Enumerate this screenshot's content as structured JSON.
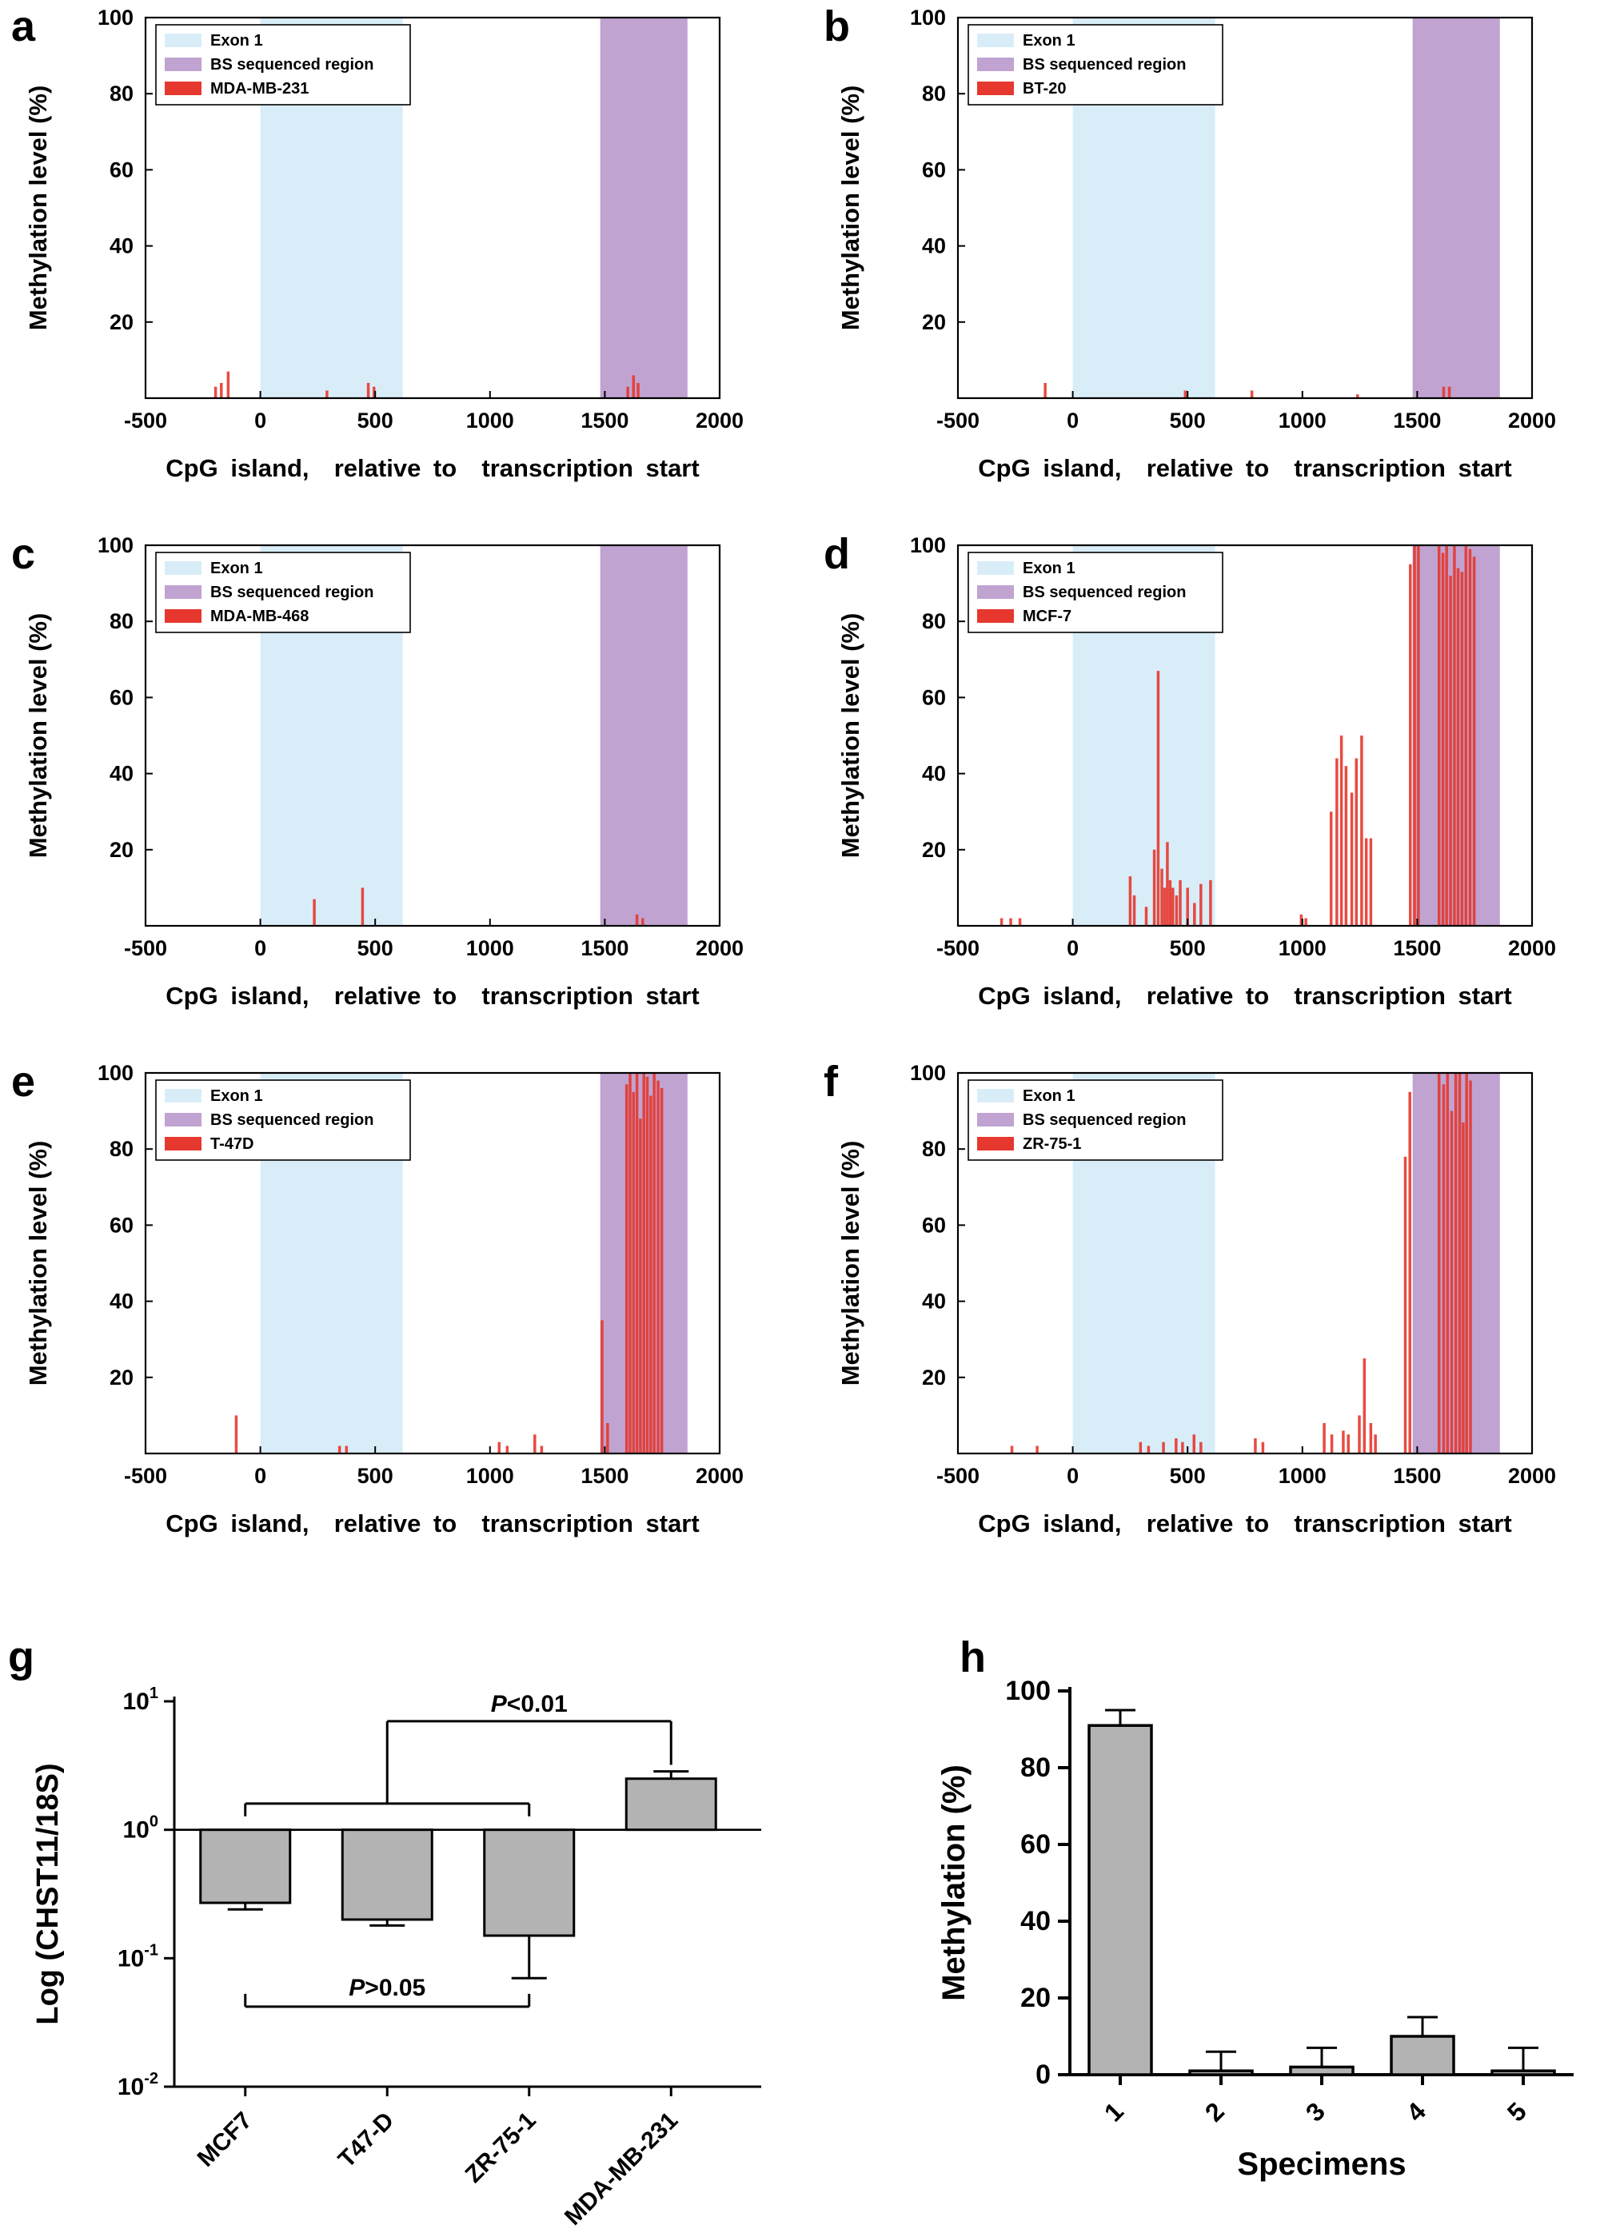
{
  "page": {
    "background": "#ffffff"
  },
  "colors": {
    "exon1_fill": "#d9edf8",
    "bs_fill": "#c0a3d1",
    "meth_bar": "#e6382e",
    "grey_bar": "#b3b3b3",
    "axis": "#000000"
  },
  "chart_data": [
    {
      "id": "a",
      "panel_label": "a",
      "type": "bar",
      "variant": "methylation-profile",
      "series_name": "MDA-MB-231",
      "xlabel": "CpG island,  relative to  transcription start",
      "ylabel": "Methylation level (%)",
      "xlim": [
        -500,
        2000
      ],
      "ylim": [
        0,
        100
      ],
      "xticks": [
        -500,
        0,
        500,
        1000,
        1500,
        2000
      ],
      "xtick_labels": [
        "-500",
        "0",
        "500",
        "1000",
        "1500",
        "2000"
      ],
      "yticks": [
        20,
        40,
        60,
        80,
        100
      ],
      "regions": [
        {
          "label": "Exon 1",
          "from": 0,
          "to": 620,
          "color_key": "exon1_fill"
        },
        {
          "label": "BS sequenced region",
          "from": 1480,
          "to": 1860,
          "color_key": "bs_fill"
        }
      ],
      "legend": [
        {
          "label": "Exon 1",
          "color_key": "exon1_fill"
        },
        {
          "label": "BS sequenced region",
          "color_key": "bs_fill"
        },
        {
          "label": "MDA-MB-231",
          "color_key": "meth_bar"
        }
      ],
      "bars": [
        [
          -195,
          3
        ],
        [
          -170,
          4
        ],
        [
          -140,
          7
        ],
        [
          290,
          2
        ],
        [
          470,
          4
        ],
        [
          495,
          3
        ],
        [
          1600,
          3
        ],
        [
          1625,
          6
        ],
        [
          1645,
          4
        ]
      ]
    },
    {
      "id": "b",
      "panel_label": "b",
      "type": "bar",
      "variant": "methylation-profile",
      "series_name": "BT-20",
      "xlabel": "CpG island,  relative to  transcription start",
      "ylabel": "Methylation level (%)",
      "xlim": [
        -500,
        2000
      ],
      "ylim": [
        0,
        100
      ],
      "xticks": [
        -500,
        0,
        500,
        1000,
        1500,
        2000
      ],
      "xtick_labels": [
        "-500",
        "0",
        "500",
        "1000",
        "1500",
        "2000"
      ],
      "yticks": [
        20,
        40,
        60,
        80,
        100
      ],
      "regions": [
        {
          "label": "Exon 1",
          "from": 0,
          "to": 620,
          "color_key": "exon1_fill"
        },
        {
          "label": "BS sequenced region",
          "from": 1480,
          "to": 1860,
          "color_key": "bs_fill"
        }
      ],
      "legend": [
        {
          "label": "Exon 1",
          "color_key": "exon1_fill"
        },
        {
          "label": "BS sequenced region",
          "color_key": "bs_fill"
        },
        {
          "label": "BT-20",
          "color_key": "meth_bar"
        }
      ],
      "bars": [
        [
          -120,
          4
        ],
        [
          490,
          2
        ],
        [
          780,
          2
        ],
        [
          1240,
          1
        ],
        [
          1615,
          3
        ],
        [
          1640,
          3
        ]
      ]
    },
    {
      "id": "c",
      "panel_label": "c",
      "type": "bar",
      "variant": "methylation-profile",
      "series_name": "MDA-MB-468",
      "xlabel": "CpG island,  relative to  transcription start",
      "ylabel": "Methylation level (%)",
      "xlim": [
        -500,
        2000
      ],
      "ylim": [
        0,
        100
      ],
      "xticks": [
        -500,
        0,
        500,
        1000,
        1500,
        2000
      ],
      "xtick_labels": [
        "-500",
        "0",
        "500",
        "1000",
        "1500",
        "2000"
      ],
      "yticks": [
        20,
        40,
        60,
        80,
        100
      ],
      "regions": [
        {
          "label": "Exon 1",
          "from": 0,
          "to": 620,
          "color_key": "exon1_fill"
        },
        {
          "label": "BS sequenced region",
          "from": 1480,
          "to": 1860,
          "color_key": "bs_fill"
        }
      ],
      "legend": [
        {
          "label": "Exon 1",
          "color_key": "exon1_fill"
        },
        {
          "label": "BS sequenced region",
          "color_key": "bs_fill"
        },
        {
          "label": "MDA-MB-468",
          "color_key": "meth_bar"
        }
      ],
      "bars": [
        [
          235,
          7
        ],
        [
          445,
          10
        ],
        [
          1640,
          3
        ],
        [
          1665,
          2
        ]
      ]
    },
    {
      "id": "d",
      "panel_label": "d",
      "type": "bar",
      "variant": "methylation-profile",
      "series_name": "MCF-7",
      "xlabel": "CpG island,  relative to  transcription start",
      "ylabel": "Methylation level (%)",
      "xlim": [
        -500,
        2000
      ],
      "ylim": [
        0,
        100
      ],
      "xticks": [
        -500,
        0,
        500,
        1000,
        1500,
        2000
      ],
      "xtick_labels": [
        "-500",
        "0",
        "500",
        "1000",
        "1500",
        "2000"
      ],
      "yticks": [
        20,
        40,
        60,
        80,
        100
      ],
      "regions": [
        {
          "label": "Exon 1",
          "from": 0,
          "to": 620,
          "color_key": "exon1_fill"
        },
        {
          "label": "BS sequenced region",
          "from": 1480,
          "to": 1860,
          "color_key": "bs_fill"
        }
      ],
      "legend": [
        {
          "label": "Exon 1",
          "color_key": "exon1_fill"
        },
        {
          "label": "BS sequenced region",
          "color_key": "bs_fill"
        },
        {
          "label": "MCF-7",
          "color_key": "meth_bar"
        }
      ],
      "bars": [
        [
          -310,
          2
        ],
        [
          -270,
          2
        ],
        [
          -230,
          2
        ],
        [
          250,
          13
        ],
        [
          268,
          8
        ],
        [
          320,
          5
        ],
        [
          355,
          20
        ],
        [
          372,
          67
        ],
        [
          388,
          15
        ],
        [
          400,
          10
        ],
        [
          412,
          22
        ],
        [
          424,
          12
        ],
        [
          436,
          10
        ],
        [
          452,
          8
        ],
        [
          468,
          12
        ],
        [
          500,
          10
        ],
        [
          530,
          6
        ],
        [
          558,
          11
        ],
        [
          600,
          12
        ],
        [
          995,
          3
        ],
        [
          1015,
          2
        ],
        [
          1125,
          30
        ],
        [
          1150,
          44
        ],
        [
          1170,
          50
        ],
        [
          1190,
          42
        ],
        [
          1215,
          35
        ],
        [
          1235,
          44
        ],
        [
          1258,
          50
        ],
        [
          1278,
          23
        ],
        [
          1298,
          23
        ],
        [
          1470,
          95
        ],
        [
          1488,
          100
        ],
        [
          1505,
          100
        ],
        [
          1595,
          100
        ],
        [
          1612,
          98
        ],
        [
          1628,
          100
        ],
        [
          1645,
          92
        ],
        [
          1662,
          100
        ],
        [
          1678,
          94
        ],
        [
          1695,
          93
        ],
        [
          1712,
          100
        ],
        [
          1730,
          99
        ],
        [
          1748,
          97
        ]
      ]
    },
    {
      "id": "e",
      "panel_label": "e",
      "type": "bar",
      "variant": "methylation-profile",
      "series_name": "T-47D",
      "xlabel": "CpG island,  relative to  transcription start",
      "ylabel": "Methylation level (%)",
      "xlim": [
        -500,
        2000
      ],
      "ylim": [
        0,
        100
      ],
      "xticks": [
        -500,
        0,
        500,
        1000,
        1500,
        2000
      ],
      "xtick_labels": [
        "-500",
        "0",
        "500",
        "1000",
        "1500",
        "2000"
      ],
      "yticks": [
        20,
        40,
        60,
        80,
        100
      ],
      "regions": [
        {
          "label": "Exon 1",
          "from": 0,
          "to": 620,
          "color_key": "exon1_fill"
        },
        {
          "label": "BS sequenced region",
          "from": 1480,
          "to": 1860,
          "color_key": "bs_fill"
        }
      ],
      "legend": [
        {
          "label": "Exon 1",
          "color_key": "exon1_fill"
        },
        {
          "label": "BS sequenced region",
          "color_key": "bs_fill"
        },
        {
          "label": "T-47D",
          "color_key": "meth_bar"
        }
      ],
      "bars": [
        [
          -105,
          10
        ],
        [
          345,
          2
        ],
        [
          375,
          2
        ],
        [
          1040,
          3
        ],
        [
          1075,
          2
        ],
        [
          1195,
          5
        ],
        [
          1225,
          2
        ],
        [
          1488,
          35
        ],
        [
          1512,
          8
        ],
        [
          1595,
          97
        ],
        [
          1610,
          100
        ],
        [
          1625,
          95
        ],
        [
          1640,
          100
        ],
        [
          1655,
          88
        ],
        [
          1670,
          100
        ],
        [
          1685,
          99
        ],
        [
          1700,
          94
        ],
        [
          1715,
          100
        ],
        [
          1732,
          98
        ],
        [
          1748,
          96
        ]
      ]
    },
    {
      "id": "f",
      "panel_label": "f",
      "type": "bar",
      "variant": "methylation-profile",
      "series_name": "ZR-75-1",
      "xlabel": "CpG island,  relative to  transcription start",
      "ylabel": "Methylation level (%)",
      "xlim": [
        -500,
        2000
      ],
      "ylim": [
        0,
        100
      ],
      "xticks": [
        -500,
        0,
        500,
        1000,
        1500,
        2000
      ],
      "xtick_labels": [
        "-500",
        "0",
        "500",
        "1000",
        "1500",
        "2000"
      ],
      "yticks": [
        20,
        40,
        60,
        80,
        100
      ],
      "regions": [
        {
          "label": "Exon 1",
          "from": 0,
          "to": 620,
          "color_key": "exon1_fill"
        },
        {
          "label": "BS sequenced region",
          "from": 1480,
          "to": 1860,
          "color_key": "bs_fill"
        }
      ],
      "legend": [
        {
          "label": "Exon 1",
          "color_key": "exon1_fill"
        },
        {
          "label": "BS sequenced region",
          "color_key": "bs_fill"
        },
        {
          "label": "ZR-75-1",
          "color_key": "meth_bar"
        }
      ],
      "bars": [
        [
          -265,
          2
        ],
        [
          -155,
          2
        ],
        [
          295,
          3
        ],
        [
          330,
          2
        ],
        [
          395,
          3
        ],
        [
          450,
          4
        ],
        [
          478,
          3
        ],
        [
          528,
          5
        ],
        [
          558,
          3
        ],
        [
          795,
          4
        ],
        [
          828,
          3
        ],
        [
          1095,
          8
        ],
        [
          1128,
          5
        ],
        [
          1178,
          6
        ],
        [
          1200,
          5
        ],
        [
          1248,
          10
        ],
        [
          1270,
          25
        ],
        [
          1298,
          8
        ],
        [
          1318,
          5
        ],
        [
          1448,
          78
        ],
        [
          1468,
          95
        ],
        [
          1595,
          100
        ],
        [
          1615,
          97
        ],
        [
          1632,
          100
        ],
        [
          1650,
          90
        ],
        [
          1668,
          100
        ],
        [
          1685,
          100
        ],
        [
          1700,
          87
        ],
        [
          1715,
          100
        ],
        [
          1732,
          98
        ]
      ]
    },
    {
      "id": "g",
      "panel_label": "g",
      "type": "bar",
      "variant": "log-bar",
      "ylabel": "Log (CHST11/18S)",
      "yscale": "log",
      "ylim": [
        0.01,
        10
      ],
      "ytick_base": "10",
      "ytick_exponents": [
        1,
        0,
        -1,
        -2
      ],
      "baseline": 1,
      "categories": [
        "MCF7",
        "T47-D",
        "ZR-75-1",
        "MDA-MB-231"
      ],
      "values": [
        0.27,
        0.2,
        0.15,
        2.5
      ],
      "errors": [
        0.03,
        0.02,
        0.08,
        0.35
      ],
      "annotations": [
        {
          "text": "P<0.01",
          "type": "compare",
          "group_from": 0,
          "group_to": 2,
          "group_y": 1.6,
          "top_y": 7,
          "target": 3,
          "target_y": 3.2
        },
        {
          "text": "P>0.05",
          "type": "span",
          "from": 0,
          "to": 2,
          "y": 0.042
        }
      ]
    },
    {
      "id": "h",
      "panel_label": "h",
      "type": "bar",
      "variant": "linear-bar",
      "ylabel": "Methylation (%)",
      "xlabel": "Specimens",
      "ylim": [
        0,
        100
      ],
      "yticks": [
        0,
        20,
        40,
        60,
        80,
        100
      ],
      "categories": [
        "1",
        "2",
        "3",
        "4",
        "5"
      ],
      "values": [
        91,
        1,
        2,
        10,
        1
      ],
      "errors": [
        4,
        5,
        5,
        5,
        6
      ]
    }
  ]
}
